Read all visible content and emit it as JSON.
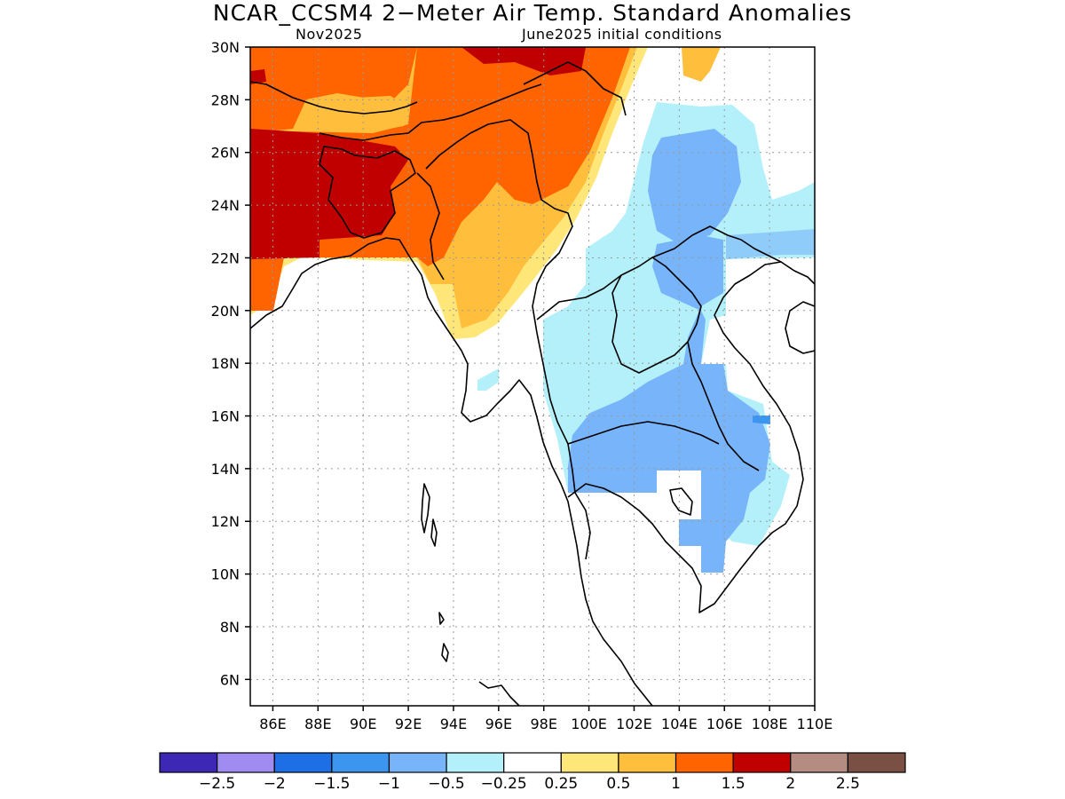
{
  "header": {
    "title": "NCAR_CCSM4 2−Meter Air Temp. Standard Anomalies",
    "left_subtitle": "Nov2025",
    "right_subtitle": "June2025 initial conditions"
  },
  "axes": {
    "lat_labels": [
      "30N",
      "28N",
      "26N",
      "24N",
      "22N",
      "20N",
      "18N",
      "16N",
      "14N",
      "12N",
      "10N",
      "8N",
      "6N"
    ],
    "lon_labels": [
      "86E",
      "88E",
      "90E",
      "92E",
      "94E",
      "96E",
      "98E",
      "100E",
      "102E",
      "104E",
      "106E",
      "108E",
      "110E"
    ]
  },
  "map_extent": {
    "lon_min": 85,
    "lon_max": 110,
    "lat_min": 5,
    "lat_max": 30
  },
  "colorbar": {
    "colors": [
      "#3c28b4",
      "#a08cf0",
      "#1e6ee6",
      "#3c96f0",
      "#78b4fa",
      "#b4f0fa",
      "#ffffff",
      "#ffe678",
      "#ffbe3c",
      "#ff6400",
      "#c00000",
      "#b48c82",
      "#7a5044"
    ],
    "labels": [
      "−2.5",
      "−2",
      "−1.5",
      "−1",
      "−0.5",
      "−0.25",
      "0.25",
      "0.5",
      "1",
      "1.5",
      "2",
      "2.5"
    ]
  }
}
